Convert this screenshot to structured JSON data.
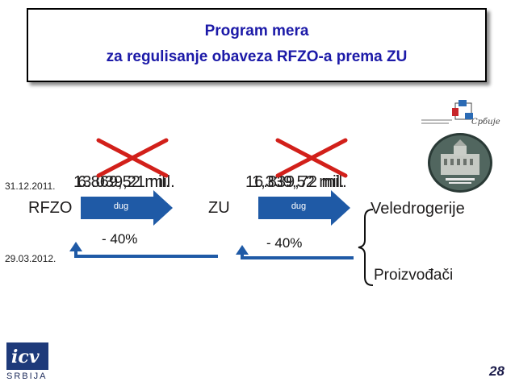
{
  "title": {
    "line1": "Program mera",
    "line2": "za regulisanje obaveza RFZO-a prema ZU"
  },
  "dates": {
    "first": "31.12.2011.",
    "second": "29.03.2012."
  },
  "left_block": {
    "amount_a": "13.039,21 mil.",
    "amount_b": "6.869,52 mil.",
    "from_label": "RFZO",
    "arrow_label": "dug",
    "reduction": "- 40%"
  },
  "right_block": {
    "amount_a": "16.839,72 mil.",
    "amount_b": "1,339,52 mil.",
    "from_label": "ZU",
    "arrow_label": "dug",
    "reduction": "- 40%"
  },
  "targets": {
    "wholesalers": "Veledrogerije",
    "manufacturers": "Proizvođači"
  },
  "footer": {
    "logo_text": "SRBIJA",
    "page_number": "28"
  },
  "colors": {
    "title": "#1c1aa8",
    "arrow": "#1f5aa6",
    "cross": "#d2201a"
  }
}
